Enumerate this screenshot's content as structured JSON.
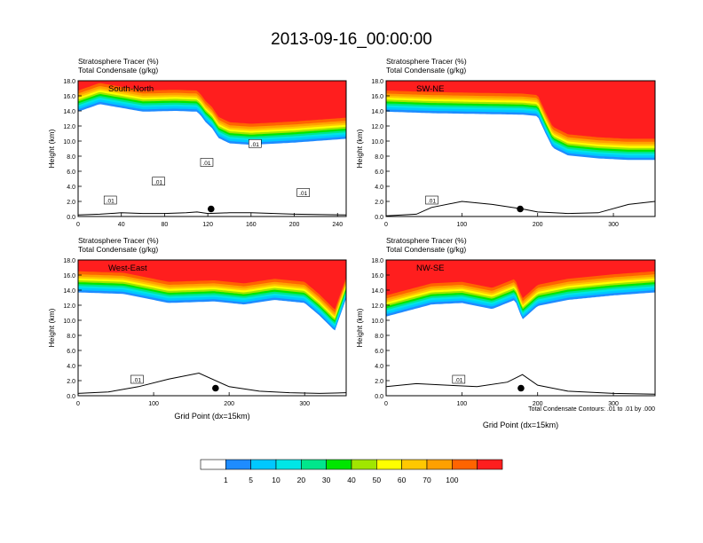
{
  "title": "2013-09-16_00:00:00",
  "colors": {
    "levels": [
      "#ffffff",
      "#1e8cff",
      "#00c8ff",
      "#00e6e6",
      "#00e68c",
      "#00e600",
      "#a0e600",
      "#ffff00",
      "#ffc800",
      "#ffa000",
      "#ff6400",
      "#ff1e1e"
    ],
    "contour": "#000000",
    "terrain": "#000000"
  },
  "colorbar": {
    "tick_labels": [
      "1",
      "5",
      "10",
      "20",
      "30",
      "40",
      "50",
      "60",
      "70",
      "100"
    ]
  },
  "contour_note": "Total Condensate Contours: .01 to .01 by .000",
  "chart_data": [
    {
      "type": "heatmap",
      "label": "South-North",
      "field_title": "Stratosphere Tracer   (%)",
      "contour_title": "Total Condensate   (g/kg)",
      "xlabel": "",
      "ylabel": "Height (km)",
      "xlim": [
        0,
        248
      ],
      "ylim": [
        0,
        18
      ],
      "x_ticks": [
        "0",
        "40",
        "80",
        "120",
        "160",
        "200",
        "240"
      ],
      "y_ticks": [
        "0.0",
        "2.0",
        "4.0",
        "6.0",
        "8.0",
        "10.0",
        "12.0",
        "14.0",
        "16.0",
        "18.0"
      ],
      "tropopause_km": {
        "x": [
          0,
          20,
          40,
          60,
          90,
          110,
          114,
          118,
          124,
          130,
          140,
          160,
          200,
          248
        ],
        "y": [
          14.8,
          15.8,
          15.3,
          14.8,
          14.9,
          14.8,
          14.2,
          13.4,
          12.6,
          11.3,
          10.6,
          10.4,
          10.7,
          11.2
        ]
      },
      "terrain_km": {
        "x": [
          0,
          20,
          40,
          60,
          80,
          100,
          110,
          120,
          140,
          160,
          200,
          248
        ],
        "y": [
          0.2,
          0.3,
          0.5,
          0.4,
          0.4,
          0.5,
          0.6,
          0.4,
          0.5,
          0.5,
          0.3,
          0.2
        ]
      },
      "marker": {
        "x": 123,
        "y": 1.0
      },
      "contour_labels": [
        ".01",
        ".01",
        ".01",
        ".01",
        ".01"
      ]
    },
    {
      "type": "heatmap",
      "label": "SW-NE",
      "field_title": "Stratosphere Tracer   (%)",
      "contour_title": "Total Condensate   (g/kg)",
      "xlabel": "",
      "ylabel": "Height (km)",
      "xlim": [
        0,
        355
      ],
      "ylim": [
        0,
        18
      ],
      "x_ticks": [
        "0",
        "100",
        "200",
        "300"
      ],
      "y_ticks": [
        "0.0",
        "2.0",
        "4.0",
        "6.0",
        "8.0",
        "10.0",
        "12.0",
        "14.0",
        "16.0",
        "18.0"
      ],
      "tropopause_km": {
        "x": [
          0,
          60,
          120,
          180,
          200,
          210,
          220,
          240,
          280,
          320,
          355
        ],
        "y": [
          14.8,
          14.6,
          14.5,
          14.4,
          14.2,
          12.0,
          10.0,
          9.0,
          8.6,
          8.4,
          8.4
        ]
      },
      "terrain_km": {
        "x": [
          0,
          40,
          60,
          100,
          140,
          180,
          200,
          240,
          280,
          320,
          355
        ],
        "y": [
          0.1,
          0.3,
          1.2,
          2.0,
          1.6,
          1.0,
          0.6,
          0.4,
          0.5,
          1.6,
          2.0
        ]
      },
      "marker": {
        "x": 177,
        "y": 1.0
      },
      "contour_labels": [
        ".01"
      ]
    },
    {
      "type": "heatmap",
      "label": "West-East",
      "field_title": "Stratosphere Tracer   (%)",
      "contour_title": "Total Condensate   (g/kg)",
      "xlabel": "Grid Point (dx=15km)",
      "ylabel": "Height (km)",
      "xlim": [
        0,
        355
      ],
      "ylim": [
        0,
        18
      ],
      "x_ticks": [
        "0",
        "100",
        "200",
        "300"
      ],
      "y_ticks": [
        "0.0",
        "2.0",
        "4.0",
        "6.0",
        "8.0",
        "10.0",
        "12.0",
        "14.0",
        "16.0",
        "18.0"
      ],
      "tropopause_km": {
        "x": [
          0,
          60,
          120,
          180,
          220,
          260,
          300,
          320,
          340,
          355
        ],
        "y": [
          14.6,
          14.4,
          13.2,
          13.4,
          13.0,
          13.6,
          13.2,
          11.5,
          9.5,
          13.8
        ]
      },
      "terrain_km": {
        "x": [
          0,
          40,
          80,
          120,
          160,
          200,
          240,
          280,
          320,
          355
        ],
        "y": [
          0.3,
          0.5,
          1.2,
          2.2,
          3.0,
          1.2,
          0.6,
          0.4,
          0.3,
          0.4
        ]
      },
      "marker": {
        "x": 182,
        "y": 1.0
      },
      "contour_labels": [
        ".01"
      ]
    },
    {
      "type": "heatmap",
      "label": "NW-SE",
      "field_title": "Stratosphere Tracer   (%)",
      "contour_title": "Total Condensate   (g/kg)",
      "xlabel": "Grid Point (dx=15km)",
      "ylabel": "Height (km)",
      "xlim": [
        0,
        355
      ],
      "ylim": [
        0,
        18
      ],
      "x_ticks": [
        "0",
        "100",
        "200",
        "300"
      ],
      "y_ticks": [
        "0.0",
        "2.0",
        "4.0",
        "6.0",
        "8.0",
        "10.0",
        "12.0",
        "14.0",
        "16.0",
        "18.0"
      ],
      "tropopause_km": {
        "x": [
          0,
          30,
          60,
          100,
          140,
          170,
          180,
          200,
          240,
          300,
          355
        ],
        "y": [
          11.4,
          12.2,
          13.0,
          13.2,
          12.4,
          13.6,
          11.0,
          12.8,
          13.6,
          14.2,
          14.6
        ]
      },
      "terrain_km": {
        "x": [
          0,
          40,
          80,
          120,
          160,
          180,
          200,
          240,
          300,
          355
        ],
        "y": [
          1.2,
          1.6,
          1.4,
          1.2,
          1.8,
          2.8,
          1.4,
          0.6,
          0.3,
          0.2
        ]
      },
      "marker": {
        "x": 178,
        "y": 1.0
      },
      "contour_labels": [
        ".01"
      ]
    }
  ]
}
